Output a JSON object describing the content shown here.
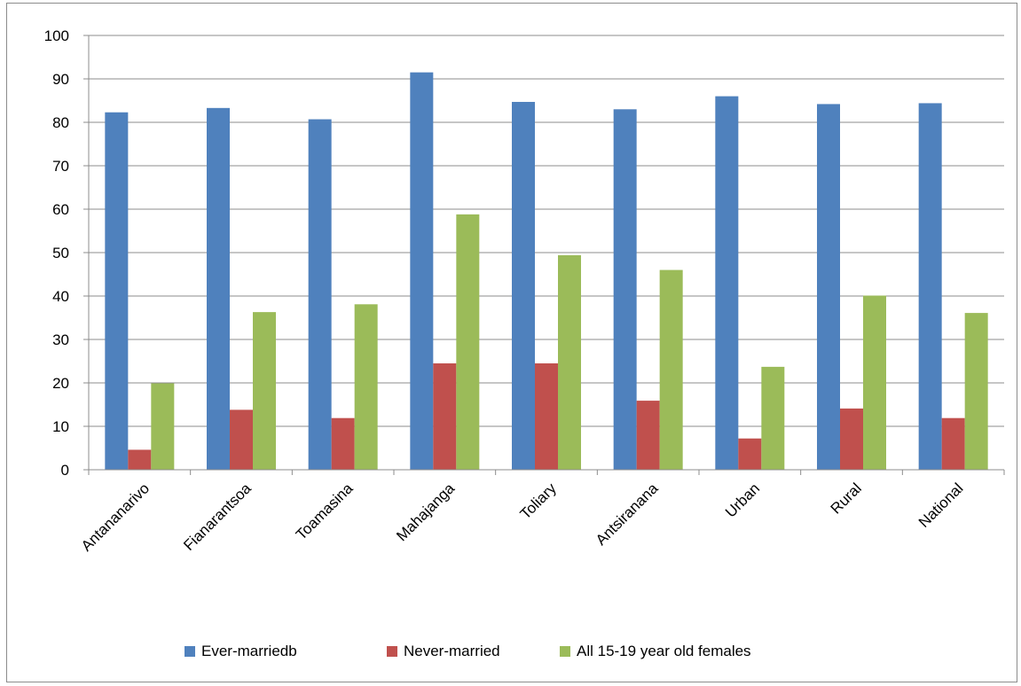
{
  "chart_data": {
    "type": "bar",
    "title": "",
    "xlabel": "",
    "ylabel": "",
    "ylim": [
      0,
      100
    ],
    "yticks": [
      "0",
      "10",
      "20",
      "30",
      "40",
      "50",
      "60",
      "70",
      "80",
      "90",
      "100"
    ],
    "grid": true,
    "legend_position": "bottom",
    "categories": [
      "Antananarivo",
      "Fianarantsoa",
      "Toamasina",
      "Mahajanga",
      "Toliary",
      "Antsiranana",
      "Urban",
      "Rural",
      "National"
    ],
    "series": [
      {
        "name": "Ever-marriedb",
        "color": "#4f81bd",
        "values": [
          82.3,
          83.3,
          80.7,
          91.5,
          84.7,
          83.0,
          86.0,
          84.2,
          84.4
        ]
      },
      {
        "name": "Never-married",
        "color": "#c0504d",
        "values": [
          4.6,
          13.8,
          11.9,
          24.5,
          24.5,
          15.9,
          7.2,
          14.1,
          11.9
        ]
      },
      {
        "name": "All 15-19 year old females",
        "color": "#9bbb59",
        "values": [
          19.9,
          36.3,
          38.1,
          58.8,
          49.4,
          46.0,
          23.7,
          40.1,
          36.1
        ]
      }
    ]
  }
}
